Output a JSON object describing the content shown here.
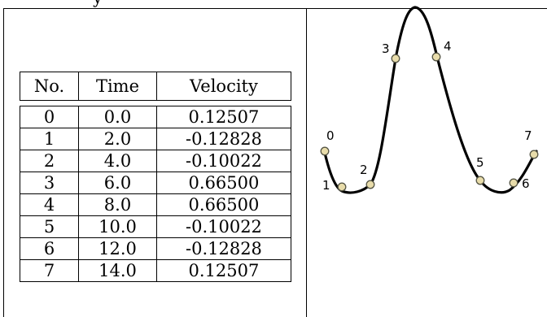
{
  "caption_fragment": "y",
  "table": {
    "headers": [
      "No.",
      "Time",
      "Velocity"
    ],
    "rows": [
      [
        "0",
        "0.0",
        "0.12507"
      ],
      [
        "1",
        "2.0",
        "-0.12828"
      ],
      [
        "2",
        "4.0",
        "-0.10022"
      ],
      [
        "3",
        "6.0",
        "0.66500"
      ],
      [
        "4",
        "8.0",
        "0.66500"
      ],
      [
        "5",
        "10.0",
        "-0.10022"
      ],
      [
        "6",
        "12.0",
        "-0.12828"
      ],
      [
        "7",
        "14.0",
        "0.12507"
      ]
    ]
  },
  "curve_diagram": {
    "point_labels": [
      "0",
      "1",
      "2",
      "3",
      "4",
      "5",
      "6",
      "7"
    ],
    "point_fill": "#e8dcaa",
    "point_stroke": "#555544",
    "curve_color": "#000000"
  }
}
